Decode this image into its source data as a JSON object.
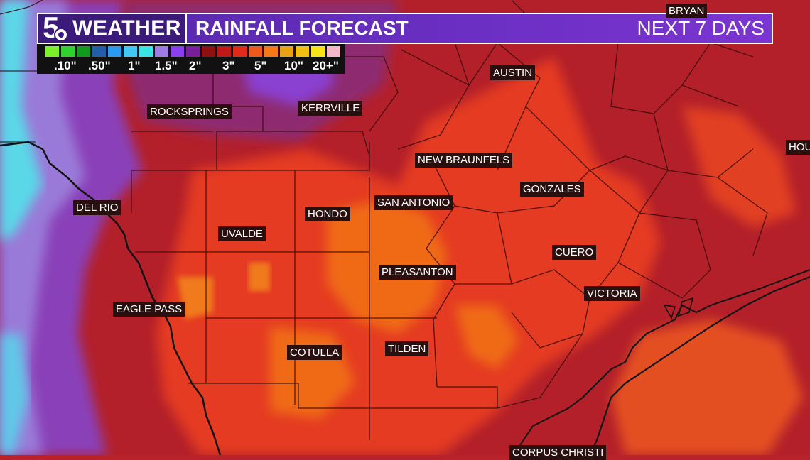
{
  "header": {
    "logo_text": "5",
    "brand": "WEATHER",
    "title": "RAINFALL FORECAST",
    "subtitle": "NEXT 7 DAYS"
  },
  "legend": {
    "ticks": [
      ".10\"",
      ".50\"",
      "1\"",
      "1.5\"",
      "2\"",
      "3\"",
      "5\"",
      "10\"",
      "20+\""
    ],
    "colors": [
      "#7cf02a",
      "#2fd22e",
      "#109a1e",
      "#235ea8",
      "#2b9bf0",
      "#43c8f5",
      "#3be3e3",
      "#9f7ce0",
      "#8a3ff0",
      "#7a1f9a",
      "#8e1010",
      "#c01818",
      "#e02a1a",
      "#f0591e",
      "#f57a17",
      "#e8a215",
      "#f2c012",
      "#f5e51a",
      "#f4b8c8"
    ]
  },
  "cities": [
    {
      "id": "bryan",
      "name": "BRYAN"
    },
    {
      "id": "austin",
      "name": "AUSTIN"
    },
    {
      "id": "rocksprings",
      "name": "ROCKSPRINGS"
    },
    {
      "id": "kerrville",
      "name": "KERRVILLE"
    },
    {
      "id": "new-braunfels",
      "name": "NEW BRAUNFELS"
    },
    {
      "id": "houston",
      "name": "HOU"
    },
    {
      "id": "gonzales",
      "name": "GONZALES"
    },
    {
      "id": "del-rio",
      "name": "DEL RIO"
    },
    {
      "id": "san-antonio",
      "name": "SAN ANTONIO"
    },
    {
      "id": "hondo",
      "name": "HONDO"
    },
    {
      "id": "uvalde",
      "name": "UVALDE"
    },
    {
      "id": "cuero",
      "name": "CUERO"
    },
    {
      "id": "pleasanton",
      "name": "PLEASANTON"
    },
    {
      "id": "victoria",
      "name": "VICTORIA"
    },
    {
      "id": "eagle-pass",
      "name": "EAGLE PASS"
    },
    {
      "id": "cotulla",
      "name": "COTULLA"
    },
    {
      "id": "tilden",
      "name": "TILDEN"
    },
    {
      "id": "corpus-christi",
      "name": "CORPUS CHRISTI"
    }
  ]
}
